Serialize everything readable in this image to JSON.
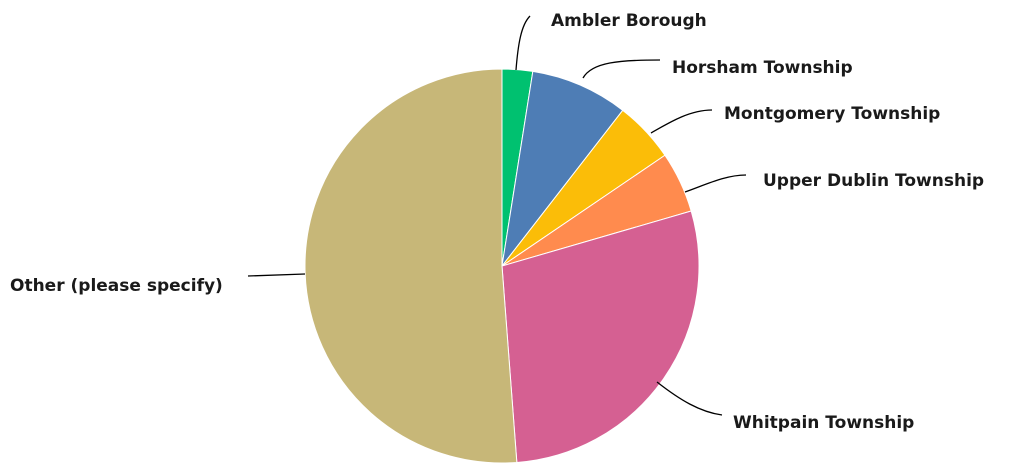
{
  "chart_data": {
    "type": "pie",
    "title": "",
    "legend": "none",
    "slices": [
      {
        "label": "Ambler Borough",
        "value": 2.5,
        "color": "#00c170"
      },
      {
        "label": "Horsham Township",
        "value": 8.0,
        "color": "#4e7db5"
      },
      {
        "label": "Montgomery Township",
        "value": 5.0,
        "color": "#fbbd08"
      },
      {
        "label": "Upper Dublin Township",
        "value": 5.0,
        "color": "#ff8b4e"
      },
      {
        "label": "Whitpain Township",
        "value": 28.3,
        "color": "#d56092"
      },
      {
        "label": "Other (please specify)",
        "value": 51.2,
        "color": "#c7b778"
      }
    ]
  }
}
